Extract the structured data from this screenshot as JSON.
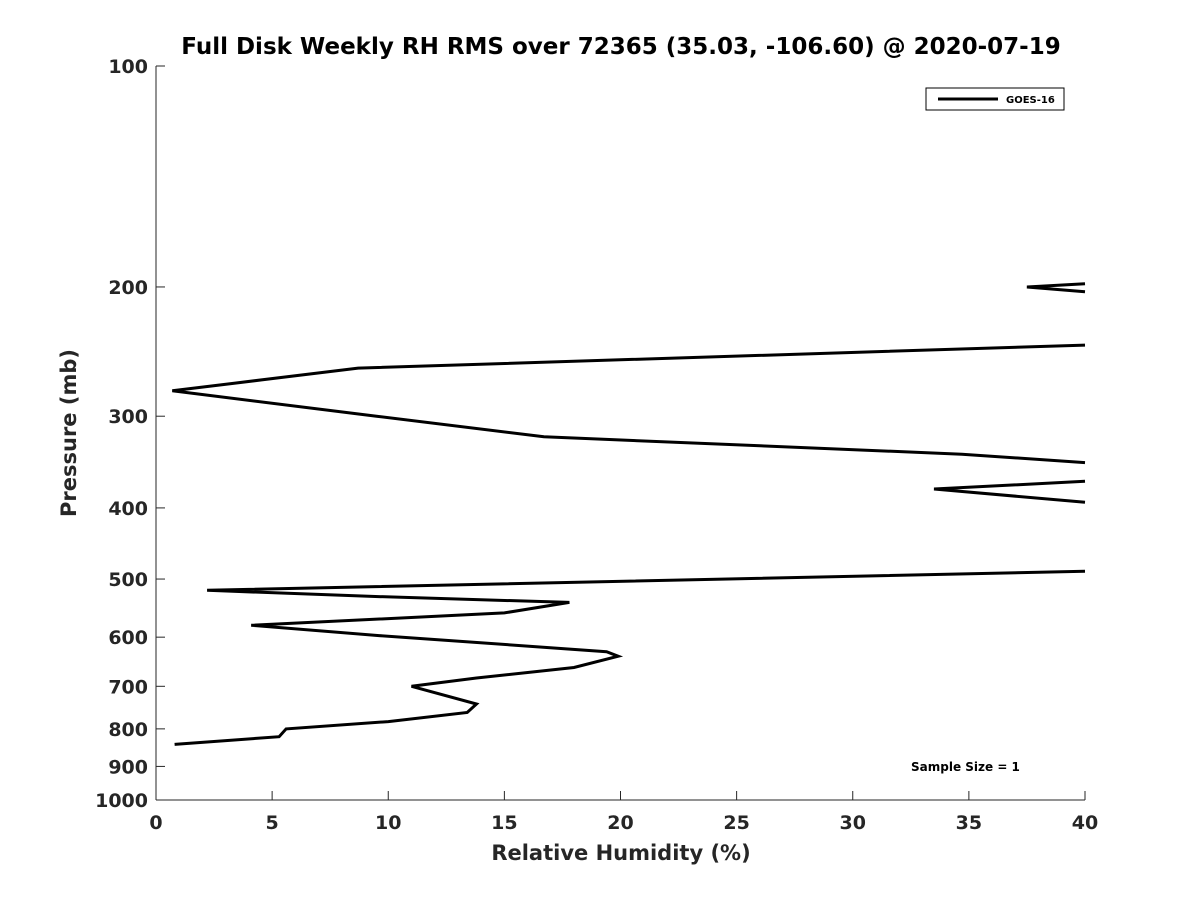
{
  "chart_data": {
    "type": "line",
    "title": "Full Disk Weekly RH RMS over 72365 (35.03, -106.60) @ 2020-07-19",
    "xlabel": "Relative Humidity (%)",
    "ylabel": "Pressure (mb)",
    "xlim": [
      0,
      40
    ],
    "ylim": [
      100,
      1000
    ],
    "y_scale": "log",
    "y_reversed": true,
    "grid": false,
    "legend_position": "top-right",
    "x_ticks": [
      0,
      5,
      10,
      15,
      20,
      25,
      30,
      35,
      40
    ],
    "x_tick_labels": [
      "0",
      "5",
      "10",
      "15",
      "20",
      "25",
      "30",
      "35",
      "40"
    ],
    "y_ticks": [
      100,
      200,
      300,
      400,
      500,
      600,
      700,
      800,
      900,
      1000
    ],
    "y_tick_labels": [
      "100",
      "200",
      "300",
      "400",
      "500",
      "600",
      "700",
      "800",
      "900",
      "1000"
    ],
    "series": [
      {
        "name": "GOES-16",
        "color": "#000000",
        "segments": [
          [
            {
              "x": 40,
              "y": 198
            },
            {
              "x": 37.5,
              "y": 200
            },
            {
              "x": 40,
              "y": 203
            }
          ],
          [
            {
              "x": 40,
              "y": 240
            },
            {
              "x": 8.7,
              "y": 258
            },
            {
              "x": 0.7,
              "y": 277
            },
            {
              "x": 9.5,
              "y": 300
            },
            {
              "x": 16.7,
              "y": 320
            },
            {
              "x": 34.7,
              "y": 338
            },
            {
              "x": 40,
              "y": 347
            }
          ],
          [
            {
              "x": 40,
              "y": 368
            },
            {
              "x": 33.5,
              "y": 377
            },
            {
              "x": 40,
              "y": 393
            }
          ],
          [
            {
              "x": 40,
              "y": 488
            },
            {
              "x": 2.2,
              "y": 518
            },
            {
              "x": 9.3,
              "y": 528
            },
            {
              "x": 17.8,
              "y": 538
            },
            {
              "x": 15.0,
              "y": 556
            },
            {
              "x": 4.1,
              "y": 578
            },
            {
              "x": 9.6,
              "y": 597
            },
            {
              "x": 19.4,
              "y": 628
            },
            {
              "x": 19.9,
              "y": 637
            },
            {
              "x": 18.0,
              "y": 660
            },
            {
              "x": 13.8,
              "y": 682
            },
            {
              "x": 11.0,
              "y": 700
            },
            {
              "x": 13.8,
              "y": 740
            },
            {
              "x": 13.4,
              "y": 760
            },
            {
              "x": 10.0,
              "y": 782
            },
            {
              "x": 5.6,
              "y": 800
            },
            {
              "x": 5.3,
              "y": 820
            },
            {
              "x": 0.8,
              "y": 840
            }
          ]
        ]
      }
    ],
    "legend": [
      "GOES-16"
    ],
    "annotations": [
      {
        "text": "Sample Size = 1"
      }
    ]
  }
}
